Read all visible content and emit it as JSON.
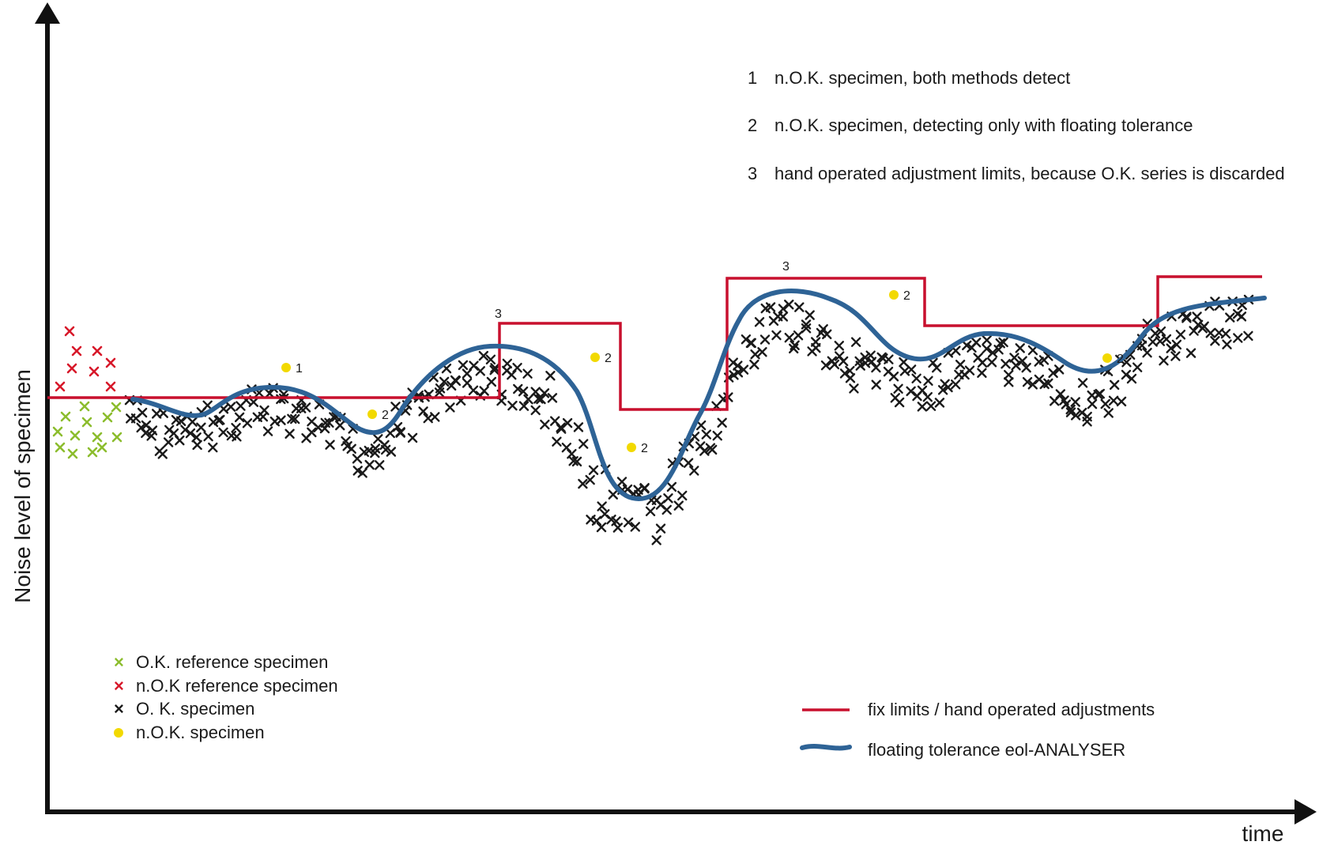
{
  "axes": {
    "y_label": "Noise level of specimen",
    "x_label": "time"
  },
  "annotations": [
    {
      "number": "1",
      "text": "n.O.K. specimen, both methods detect"
    },
    {
      "number": "2",
      "text": "n.O.K. specimen, detecting only with floating tolerance"
    },
    {
      "number": "3",
      "text": "hand operated adjustment limits, because O.K. series is discarded"
    }
  ],
  "markers": {
    "nok_1": "1",
    "nok_2": "2",
    "limit_3": "3"
  },
  "legend_left": [
    {
      "symbol": "×",
      "color": "#8cbd2e",
      "label": "O.K. reference specimen"
    },
    {
      "symbol": "×",
      "color": "#d7182a",
      "label": "n.O.K reference specimen"
    },
    {
      "symbol": "×",
      "color": "#1a1a1a",
      "label": "O. K.  specimen"
    },
    {
      "symbol": "●",
      "color": "#f2d900",
      "label": "n.O.K. specimen"
    }
  ],
  "legend_right": [
    {
      "color": "#c8102e",
      "label": "fix limits / hand operated adjustments"
    },
    {
      "color": "#2e6396",
      "label": "floating tolerance  eol-ANALYSER"
    }
  ],
  "colors": {
    "fix_limit": "#c8102e",
    "floating": "#2e6396",
    "ok_ref": "#8cbd2e",
    "nok_ref": "#d7182a",
    "ok": "#1a1a1a",
    "nok": "#f2d900"
  }
}
